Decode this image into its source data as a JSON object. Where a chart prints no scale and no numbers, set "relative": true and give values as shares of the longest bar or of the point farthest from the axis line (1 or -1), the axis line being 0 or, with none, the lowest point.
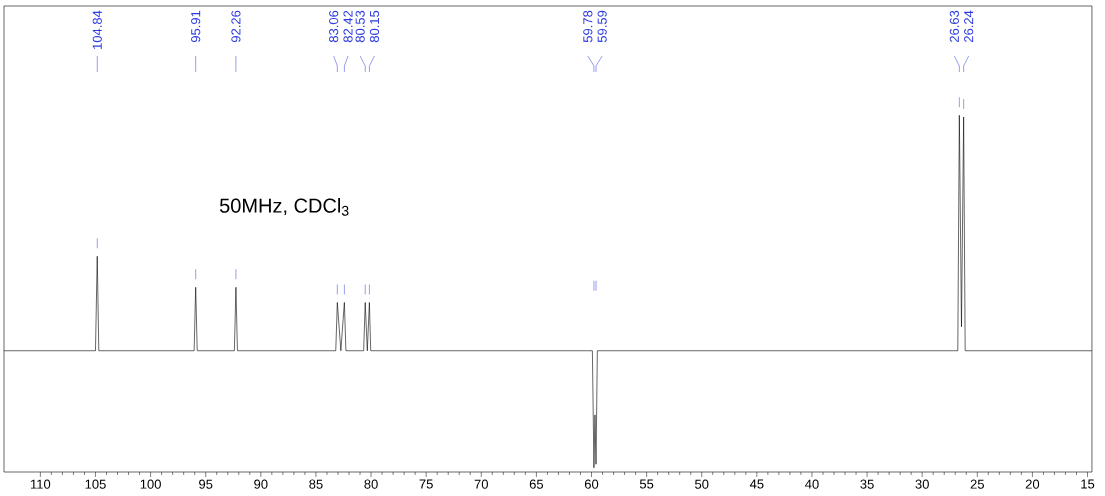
{
  "chart_data": {
    "type": "line",
    "relative": true,
    "annotations": [
      {
        "text": "104.84",
        "x": 104.84
      },
      {
        "text": "95.91",
        "x": 95.91
      },
      {
        "text": "92.26",
        "x": 92.26
      },
      {
        "text": "83.06",
        "x": 83.06
      },
      {
        "text": "82.42",
        "x": 82.42
      },
      {
        "text": "80.53",
        "x": 80.53
      },
      {
        "text": "80.15",
        "x": 80.15
      },
      {
        "text": "59.78",
        "x": 59.78
      },
      {
        "text": "59.59",
        "x": 59.59
      },
      {
        "text": "26.63",
        "x": 26.63
      },
      {
        "text": "26.24",
        "x": 26.24
      },
      "50MHz, CDCl$_{3}$"
    ],
    "xlim": [
      113.3,
      14.6
    ],
    "xticks": [
      110,
      105,
      100,
      95,
      90,
      85,
      80,
      75,
      70,
      65,
      60,
      55,
      50,
      45,
      40,
      35,
      30,
      25,
      20,
      15
    ],
    "series": [
      {
        "color": "#000000",
        "x": [
          113.3,
          105.0,
          104.84,
          104.7,
          96.05,
          95.91,
          95.77,
          92.4,
          92.26,
          92.12,
          83.2,
          83.06,
          82.74,
          82.42,
          82.28,
          80.67,
          80.53,
          80.34,
          80.15,
          80.03,
          59.92,
          59.78,
          59.685,
          59.59,
          59.47,
          26.77,
          26.63,
          26.435,
          26.24,
          26.1,
          14.6
        ],
        "values": [
          0.332,
          0.332,
          0.6,
          0.332,
          0.332,
          0.512,
          0.332,
          0.332,
          0.512,
          0.332,
          0.332,
          0.469,
          0.332,
          0.469,
          0.332,
          0.332,
          0.469,
          0.332,
          0.469,
          0.332,
          0.332,
          0.0,
          0.15,
          0.01,
          0.332,
          0.332,
          1.0,
          0.4,
          0.995,
          0.332,
          0.332
        ]
      }
    ]
  }
}
